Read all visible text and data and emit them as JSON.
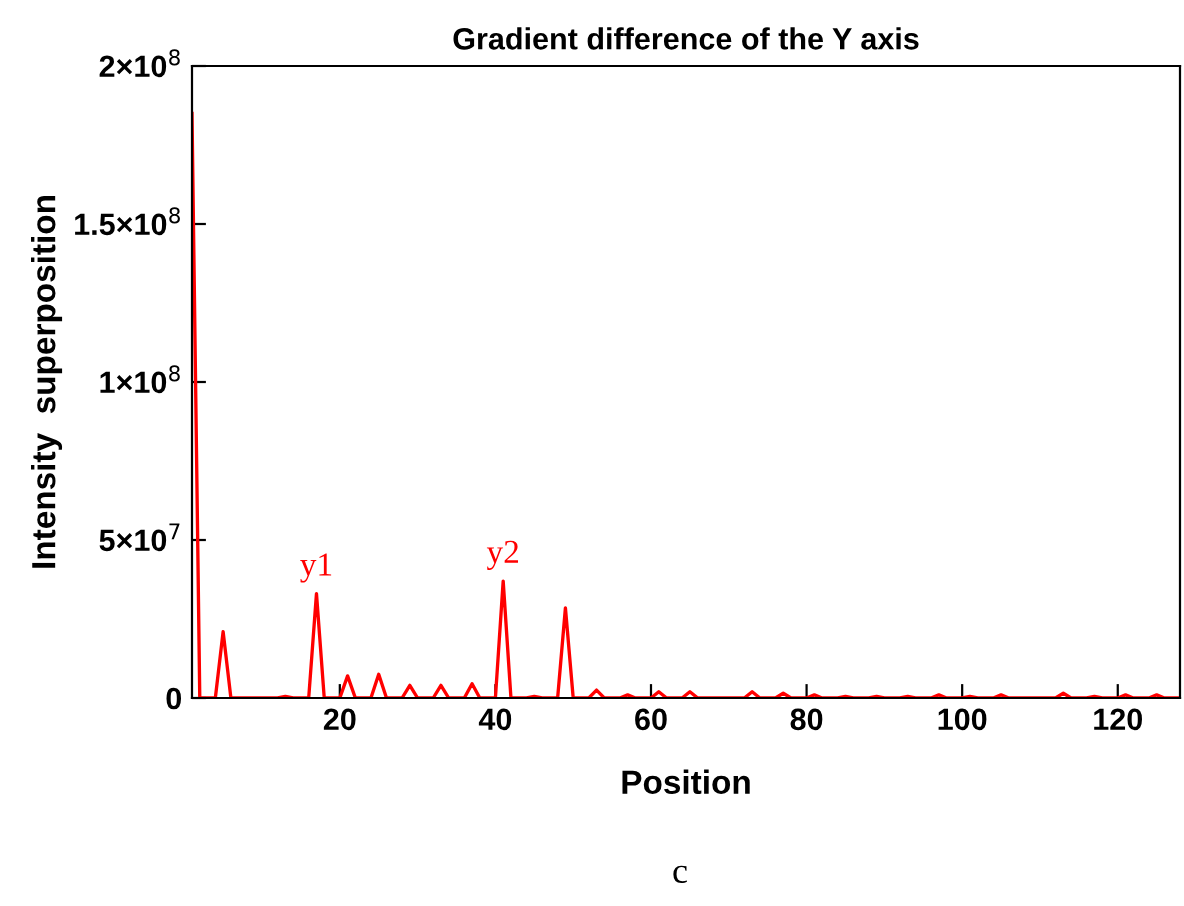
{
  "chart_data": {
    "type": "line",
    "title": "Gradient difference of the Y axis",
    "xlabel": "Position",
    "ylabel": "Intensity  superposition",
    "x": [
      1,
      2,
      3,
      4,
      5,
      6,
      7,
      8,
      9,
      10,
      11,
      12,
      13,
      14,
      15,
      16,
      17,
      18,
      19,
      20,
      21,
      22,
      23,
      24,
      25,
      26,
      27,
      28,
      29,
      30,
      31,
      32,
      33,
      34,
      35,
      36,
      37,
      38,
      39,
      40,
      41,
      42,
      43,
      44,
      45,
      46,
      47,
      48,
      49,
      50,
      51,
      52,
      53,
      54,
      55,
      56,
      57,
      58,
      59,
      60,
      61,
      62,
      63,
      64,
      65,
      66,
      67,
      68,
      69,
      70,
      71,
      72,
      73,
      74,
      75,
      76,
      77,
      78,
      79,
      80,
      81,
      82,
      83,
      84,
      85,
      86,
      87,
      88,
      89,
      90,
      91,
      92,
      93,
      94,
      95,
      96,
      97,
      98,
      99,
      100,
      101,
      102,
      103,
      104,
      105,
      106,
      107,
      108,
      109,
      110,
      111,
      112,
      113,
      114,
      115,
      116,
      117,
      118,
      119,
      120,
      121,
      122,
      123,
      124,
      125,
      126,
      127,
      128
    ],
    "series": [
      {
        "color": "#ff0000",
        "values": [
          185000000,
          0,
          0,
          0,
          21000000,
          0,
          0,
          0,
          0,
          0,
          0,
          0,
          500000,
          0,
          0,
          0,
          33000000,
          0,
          0,
          0,
          7000000,
          0,
          0,
          0,
          7500000,
          0,
          0,
          0,
          4000000,
          0,
          0,
          0,
          4000000,
          0,
          0,
          0,
          4500000,
          0,
          0,
          0,
          37000000,
          0,
          0,
          0,
          500000,
          0,
          0,
          0,
          28500000,
          0,
          0,
          0,
          2500000,
          0,
          0,
          0,
          1000000,
          0,
          0,
          0,
          2000000,
          0,
          0,
          0,
          2000000,
          0,
          0,
          0,
          0,
          0,
          0,
          0,
          2000000,
          0,
          0,
          0,
          1500000,
          0,
          0,
          0,
          1000000,
          0,
          0,
          0,
          500000,
          0,
          0,
          0,
          500000,
          0,
          0,
          0,
          500000,
          0,
          0,
          0,
          1000000,
          0,
          0,
          0,
          500000,
          0,
          0,
          0,
          1000000,
          0,
          0,
          0,
          0,
          0,
          0,
          0,
          1500000,
          0,
          0,
          0,
          500000,
          0,
          0,
          0,
          1000000,
          0,
          0,
          0,
          1000000,
          0,
          0,
          0
        ]
      }
    ],
    "xlim": [
      1,
      128
    ],
    "xticks": [
      20,
      40,
      60,
      80,
      100,
      120
    ],
    "ylim": [
      0,
      200000000
    ],
    "yticks": [
      {
        "value": 0,
        "label": "0"
      },
      {
        "value": 50000000,
        "label": "5×10$^{7}$"
      },
      {
        "value": 100000000,
        "label": "1×10$^{8}$"
      },
      {
        "value": 150000000,
        "label": "1.5×10$^{8}$"
      },
      {
        "value": 200000000,
        "label": "2×10$^{8}$"
      }
    ],
    "grid": false,
    "legend": false,
    "marker": "none",
    "line_style": "solid",
    "annotations": [
      {
        "text": "y1",
        "x": 17,
        "y": 33000000
      },
      {
        "text": "y2",
        "x": 41,
        "y": 37000000
      },
      "c"
    ]
  }
}
